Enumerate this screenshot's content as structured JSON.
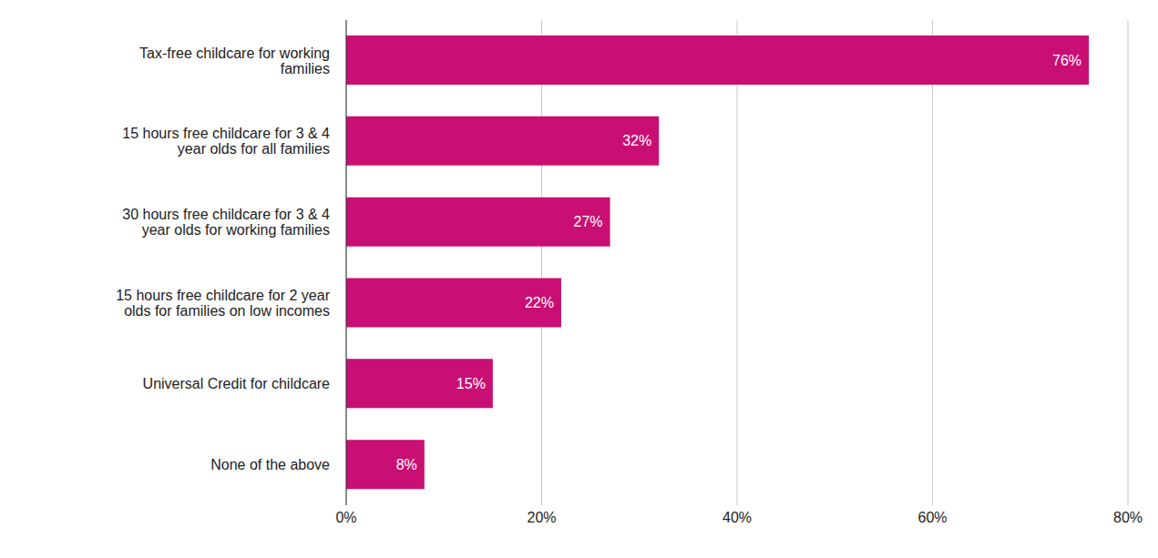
{
  "chart_data": {
    "type": "bar",
    "orientation": "horizontal",
    "categories": [
      "Tax-free childcare for working families",
      "15 hours free childcare for 3 & 4 year olds for all families",
      "30 hours free childcare for 3 & 4 year olds for working families",
      "15 hours free childcare for 2 year olds for families on low incomes",
      "Universal Credit for childcare",
      "None of the above"
    ],
    "values": [
      76,
      32,
      27,
      22,
      15,
      8
    ],
    "value_labels": [
      "76%",
      "32%",
      "27%",
      "22%",
      "15%",
      "8%"
    ],
    "color": "#c90f74",
    "xlim": [
      0,
      80
    ],
    "xticks": [
      {
        "value": 0,
        "label": "0%"
      },
      {
        "value": 20,
        "label": "20%"
      },
      {
        "value": 40,
        "label": "40%"
      },
      {
        "value": 60,
        "label": "60%"
      },
      {
        "value": 80,
        "label": "80%"
      }
    ],
    "grid": true,
    "data_labels": true
  }
}
